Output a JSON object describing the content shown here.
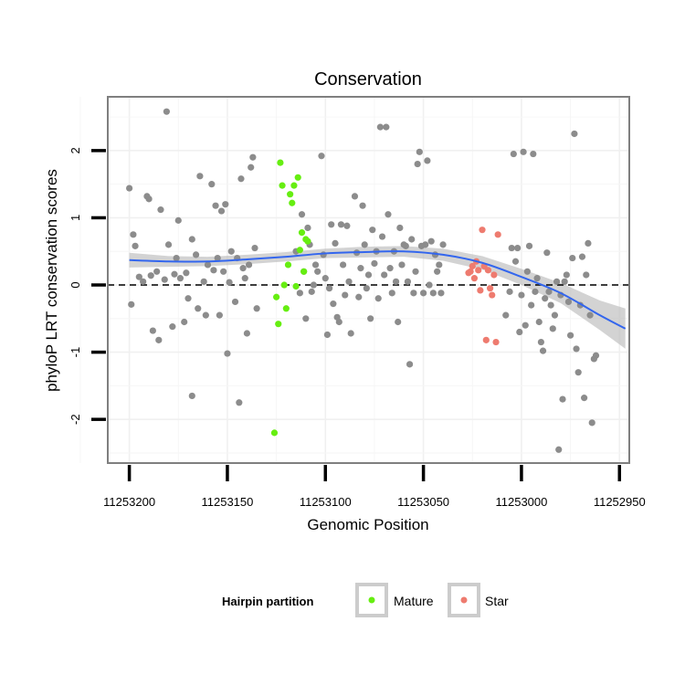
{
  "chart_data": {
    "type": "scatter",
    "title": "Conservation",
    "xlabel": "Genomic Position",
    "ylabel": "phyloP LRT conservation scores",
    "x_reversed": true,
    "xlim": [
      11253211,
      11252945
    ],
    "ylim": [
      -2.65,
      2.8
    ],
    "xticks": [
      11253200,
      11253150,
      11253100,
      11253050,
      11253000,
      11252950
    ],
    "xtick_labels": [
      "11253200",
      "11253150",
      "11253100",
      "11253050",
      "11253000",
      "11252950"
    ],
    "yticks": [
      -2,
      -1,
      0,
      1,
      2
    ],
    "ytick_labels": [
      "-2",
      "-1",
      "0",
      "1",
      "2"
    ],
    "reference_line": {
      "y": 0,
      "style": "dashed"
    },
    "legend": {
      "title": "Hairpin partition",
      "position": "bottom",
      "entries": [
        {
          "label": "Mature",
          "color": "#66ee11"
        },
        {
          "label": "Star",
          "color": "#ee7b6f"
        }
      ]
    },
    "colors": {
      "other": "#8c8c8c",
      "mature": "#66ee11",
      "star": "#ee7b6f",
      "smooth": "#3366ee",
      "band": "#bcbcbc"
    },
    "series": [
      {
        "name": "Other",
        "points": [
          [
            11253200,
            1.44
          ],
          [
            11253198,
            0.75
          ],
          [
            11253199,
            -0.29
          ],
          [
            11253197,
            0.58
          ],
          [
            11253195,
            0.12
          ],
          [
            11253193,
            0.05
          ],
          [
            11253191,
            1.32
          ],
          [
            11253190,
            1.28
          ],
          [
            11253189,
            0.14
          ],
          [
            11253188,
            -0.68
          ],
          [
            11253186,
            0.2
          ],
          [
            11253185,
            -0.82
          ],
          [
            11253184,
            1.12
          ],
          [
            11253182,
            0.08
          ],
          [
            11253181,
            2.58
          ],
          [
            11253180,
            0.6
          ],
          [
            11253178,
            -0.62
          ],
          [
            11253177,
            0.16
          ],
          [
            11253176,
            0.4
          ],
          [
            11253175,
            0.96
          ],
          [
            11253174,
            0.1
          ],
          [
            11253172,
            -0.55
          ],
          [
            11253171,
            0.18
          ],
          [
            11253170,
            -0.2
          ],
          [
            11253168,
            -1.65
          ],
          [
            11253168,
            0.68
          ],
          [
            11253166,
            0.45
          ],
          [
            11253165,
            -0.35
          ],
          [
            11253164,
            1.62
          ],
          [
            11253162,
            0.05
          ],
          [
            11253161,
            -0.45
          ],
          [
            11253160,
            0.3
          ],
          [
            11253158,
            1.5
          ],
          [
            11253157,
            0.22
          ],
          [
            11253156,
            1.18
          ],
          [
            11253155,
            0.4
          ],
          [
            11253154,
            -0.45
          ],
          [
            11253153,
            1.1
          ],
          [
            11253152,
            0.2
          ],
          [
            11253151,
            1.2
          ],
          [
            11253150,
            -1.02
          ],
          [
            11253149,
            0.04
          ],
          [
            11253148,
            0.5
          ],
          [
            11253146,
            -0.25
          ],
          [
            11253145,
            0.4
          ],
          [
            11253144,
            -1.75
          ],
          [
            11253143,
            1.58
          ],
          [
            11253142,
            0.25
          ],
          [
            11253141,
            0.1
          ],
          [
            11253140,
            -0.72
          ],
          [
            11253139,
            0.3
          ],
          [
            11253138,
            1.75
          ],
          [
            11253137,
            1.9
          ],
          [
            11253136,
            0.55
          ],
          [
            11253135,
            -0.35
          ],
          [
            11253115,
            0.5
          ],
          [
            11253113,
            -0.12
          ],
          [
            11253112,
            1.05
          ],
          [
            11253111,
            0.2
          ],
          [
            11253110,
            -0.5
          ],
          [
            11253109,
            0.85
          ],
          [
            11253108,
            0.6
          ],
          [
            11253107,
            -0.1
          ],
          [
            11253106,
            0.0
          ],
          [
            11253105,
            0.3
          ],
          [
            11253104,
            0.2
          ],
          [
            11253102,
            1.92
          ],
          [
            11253101,
            0.45
          ],
          [
            11253100,
            0.1
          ],
          [
            11253099,
            -0.74
          ],
          [
            11253098,
            -0.05
          ],
          [
            11253097,
            0.9
          ],
          [
            11253096,
            -0.28
          ],
          [
            11253095,
            0.62
          ],
          [
            11253094,
            -0.48
          ],
          [
            11253093,
            -0.55
          ],
          [
            11253092,
            0.9
          ],
          [
            11253091,
            0.3
          ],
          [
            11253090,
            -0.15
          ],
          [
            11253089,
            0.88
          ],
          [
            11253088,
            0.05
          ],
          [
            11253087,
            -0.72
          ],
          [
            11253085,
            1.32
          ],
          [
            11253084,
            0.48
          ],
          [
            11253083,
            -0.18
          ],
          [
            11253082,
            0.25
          ],
          [
            11253081,
            1.18
          ],
          [
            11253080,
            0.6
          ],
          [
            11253079,
            -0.05
          ],
          [
            11253078,
            0.15
          ],
          [
            11253077,
            -0.5
          ],
          [
            11253076,
            0.82
          ],
          [
            11253075,
            0.32
          ],
          [
            11253074,
            0.5
          ],
          [
            11253073,
            -0.2
          ],
          [
            11253072,
            2.35
          ],
          [
            11253071,
            0.72
          ],
          [
            11253070,
            0.15
          ],
          [
            11253069,
            2.35
          ],
          [
            11253068,
            1.05
          ],
          [
            11253067,
            0.25
          ],
          [
            11253066,
            -0.12
          ],
          [
            11253065,
            0.5
          ],
          [
            11253064,
            0.05
          ],
          [
            11253063,
            -0.55
          ],
          [
            11253062,
            0.85
          ],
          [
            11253061,
            0.3
          ],
          [
            11253060,
            0.6
          ],
          [
            11253059,
            0.58
          ],
          [
            11253058,
            0.05
          ],
          [
            11253057,
            -1.18
          ],
          [
            11253056,
            0.68
          ],
          [
            11253055,
            -0.12
          ],
          [
            11253054,
            0.2
          ],
          [
            11253053,
            1.8
          ],
          [
            11253052,
            1.98
          ],
          [
            11253051,
            0.58
          ],
          [
            11253050,
            -0.12
          ],
          [
            11253049,
            0.6
          ],
          [
            11253048,
            1.85
          ],
          [
            11253047,
            0.0
          ],
          [
            11253046,
            0.65
          ],
          [
            11253045,
            -0.12
          ],
          [
            11253044,
            0.45
          ],
          [
            11253043,
            0.2
          ],
          [
            11253042,
            0.3
          ],
          [
            11253041,
            -0.12
          ],
          [
            11253040,
            0.6
          ],
          [
            11253008,
            -0.45
          ],
          [
            11253006,
            -0.1
          ],
          [
            11253005,
            0.55
          ],
          [
            11253004,
            1.95
          ],
          [
            11253003,
            0.35
          ],
          [
            11253002,
            0.55
          ],
          [
            11253001,
            -0.7
          ],
          [
            11253000,
            -0.15
          ],
          [
            11252999,
            1.98
          ],
          [
            11252998,
            -0.6
          ],
          [
            11252997,
            0.2
          ],
          [
            11252996,
            0.58
          ],
          [
            11252995,
            -0.3
          ],
          [
            11252994,
            1.95
          ],
          [
            11252993,
            -0.1
          ],
          [
            11252992,
            0.1
          ],
          [
            11252991,
            -0.55
          ],
          [
            11252990,
            -0.85
          ],
          [
            11252989,
            -0.98
          ],
          [
            11252988,
            -0.2
          ],
          [
            11252987,
            0.48
          ],
          [
            11252986,
            -0.1
          ],
          [
            11252985,
            -0.3
          ],
          [
            11252984,
            -0.65
          ],
          [
            11252983,
            -0.45
          ],
          [
            11252982,
            0.05
          ],
          [
            11252981,
            -2.45
          ],
          [
            11252980,
            -0.15
          ],
          [
            11252979,
            -1.7
          ],
          [
            11252978,
            0.05
          ],
          [
            11252977,
            0.15
          ],
          [
            11252976,
            -0.25
          ],
          [
            11252975,
            -0.75
          ],
          [
            11252974,
            0.4
          ],
          [
            11252973,
            2.25
          ],
          [
            11252972,
            -0.95
          ],
          [
            11252971,
            -1.3
          ],
          [
            11252970,
            -0.3
          ],
          [
            11252969,
            0.42
          ],
          [
            11252968,
            -1.68
          ],
          [
            11252967,
            0.15
          ],
          [
            11252966,
            0.62
          ],
          [
            11252965,
            -0.45
          ],
          [
            11252964,
            -2.05
          ],
          [
            11252963,
            -1.1
          ],
          [
            11252962,
            -1.05
          ]
        ]
      },
      {
        "name": "Mature",
        "points": [
          [
            11253126,
            -2.2
          ],
          [
            11253125,
            -0.18
          ],
          [
            11253124,
            -0.58
          ],
          [
            11253123,
            1.82
          ],
          [
            11253122,
            1.48
          ],
          [
            11253121,
            0.0
          ],
          [
            11253120,
            -0.35
          ],
          [
            11253119,
            0.3
          ],
          [
            11253118,
            1.35
          ],
          [
            11253117,
            1.22
          ],
          [
            11253116,
            1.48
          ],
          [
            11253115,
            -0.02
          ],
          [
            11253114,
            1.6
          ],
          [
            11253113,
            0.52
          ],
          [
            11253112,
            0.78
          ],
          [
            11253111,
            0.2
          ],
          [
            11253110,
            0.68
          ],
          [
            11253109,
            0.65
          ]
        ]
      },
      {
        "name": "Star",
        "points": [
          [
            11253027,
            0.18
          ],
          [
            11253026,
            0.2
          ],
          [
            11253025,
            0.28
          ],
          [
            11253024,
            0.1
          ],
          [
            11253023,
            0.35
          ],
          [
            11253022,
            0.22
          ],
          [
            11253021,
            -0.08
          ],
          [
            11253020,
            0.82
          ],
          [
            11253019,
            0.28
          ],
          [
            11253018,
            -0.82
          ],
          [
            11253017,
            0.22
          ],
          [
            11253016,
            -0.05
          ],
          [
            11253015,
            -0.15
          ],
          [
            11253014,
            0.15
          ],
          [
            11253013,
            -0.85
          ],
          [
            11253012,
            0.75
          ]
        ]
      }
    ],
    "smooth": {
      "x": [
        11253200,
        11253180,
        11253160,
        11253140,
        11253120,
        11253100,
        11253080,
        11253060,
        11253040,
        11253020,
        11253000,
        11252980,
        11252960,
        11252947
      ],
      "y": [
        0.37,
        0.35,
        0.35,
        0.38,
        0.42,
        0.47,
        0.49,
        0.5,
        0.45,
        0.33,
        0.12,
        -0.12,
        -0.45,
        -0.65
      ],
      "band": [
        0.11,
        0.08,
        0.07,
        0.07,
        0.07,
        0.07,
        0.08,
        0.08,
        0.09,
        0.1,
        0.12,
        0.15,
        0.22,
        0.3
      ]
    }
  }
}
